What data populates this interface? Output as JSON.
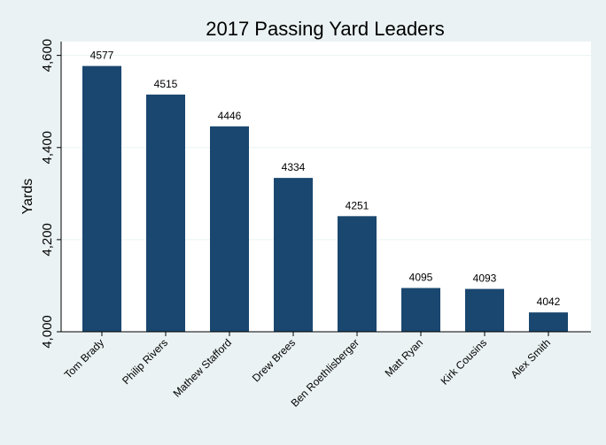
{
  "chart_data": {
    "type": "bar",
    "title": "2017 Passing Yard Leaders",
    "xlabel": "",
    "ylabel": "Yards",
    "categories": [
      "Tom Brady",
      "Philip Rivers",
      "Mathew Stafford",
      "Drew Brees",
      "Ben Roethlisberger",
      "Matt Ryan",
      "Kirk Cousins",
      "Alex Smith"
    ],
    "values": [
      4577,
      4515,
      4446,
      4334,
      4251,
      4095,
      4093,
      4042
    ],
    "value_labels": [
      "4577",
      "4515",
      "4446",
      "4334",
      "4251",
      "4095",
      "4093",
      "4042"
    ],
    "ylim": [
      4000,
      4630
    ],
    "yticks": [
      4000,
      4200,
      4400,
      4600
    ],
    "ytick_labels": [
      "4,000",
      "4,200",
      "4,400",
      "4,600"
    ],
    "grid": true,
    "colors": {
      "background": "#eaf2f3",
      "plot_area": "#ffffff",
      "bar": "#1a476f",
      "grid": "#eaf2f3",
      "axis": "#000000"
    }
  }
}
